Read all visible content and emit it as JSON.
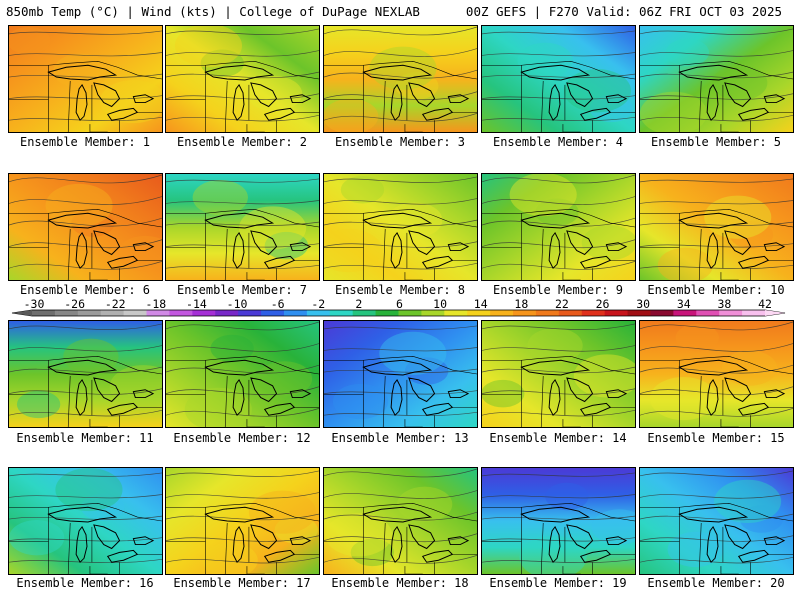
{
  "header": {
    "left": "850mb Temp (°C) | Wind (kts) | College of DuPage NEXLAB",
    "right": "00Z GEFS | F270 Valid: 06Z FRI OCT 03 2025"
  },
  "color_scale": {
    "tick_labels": [
      "-30",
      "-26",
      "-22",
      "-18",
      "-14",
      "-10",
      "-6",
      "-2",
      "2",
      "6",
      "10",
      "14",
      "18",
      "22",
      "26",
      "30",
      "34",
      "38",
      "42"
    ],
    "colors": [
      "#6e6e6e",
      "#878787",
      "#9b9b9b",
      "#b0b0b0",
      "#c8c8c8",
      "#d18ae6",
      "#c357e0",
      "#a52fd6",
      "#7828c8",
      "#4b3ad6",
      "#2f5fe6",
      "#2f8ff0",
      "#38c0ee",
      "#2ed6c4",
      "#26c47e",
      "#28b23a",
      "#6cc42a",
      "#a8d62a",
      "#e6e62a",
      "#f5d21c",
      "#f7b21c",
      "#f6951c",
      "#f07a1c",
      "#e85a1c",
      "#e0301c",
      "#c8141c",
      "#a00e14",
      "#8a0a30",
      "#c8147a",
      "#e050b4",
      "#f090d8",
      "#f8c0ee"
    ]
  },
  "members": [
    {
      "label": "Ensemble Member: 1",
      "colors": [
        "#f07a1c",
        "#f6951c",
        "#f7b21c",
        "#f5d21c",
        "#f6951c"
      ]
    },
    {
      "label": "Ensemble Member: 2",
      "colors": [
        "#a8d62a",
        "#6cc42a",
        "#e6e62a",
        "#f5d21c",
        "#f6951c"
      ]
    },
    {
      "label": "Ensemble Member: 3",
      "colors": [
        "#e6e62a",
        "#f5d21c",
        "#f7b21c",
        "#a8d62a",
        "#f6951c"
      ]
    },
    {
      "label": "Ensemble Member: 4",
      "colors": [
        "#2f5fe6",
        "#38c0ee",
        "#2ed6c4",
        "#26c47e",
        "#6cc42a"
      ]
    },
    {
      "label": "Ensemble Member: 5",
      "colors": [
        "#38c0ee",
        "#2ed6c4",
        "#6cc42a",
        "#a8d62a",
        "#f5d21c"
      ]
    },
    {
      "label": "Ensemble Member: 6",
      "colors": [
        "#e85a1c",
        "#f07a1c",
        "#f6951c",
        "#f7b21c",
        "#a8d62a"
      ]
    },
    {
      "label": "Ensemble Member: 7",
      "colors": [
        "#2ed6c4",
        "#26c47e",
        "#a8d62a",
        "#e6e62a",
        "#f7b21c"
      ]
    },
    {
      "label": "Ensemble Member: 8",
      "colors": [
        "#6cc42a",
        "#a8d62a",
        "#e6e62a",
        "#f5d21c",
        "#e6e62a"
      ]
    },
    {
      "label": "Ensemble Member: 9",
      "colors": [
        "#26c47e",
        "#6cc42a",
        "#a8d62a",
        "#e6e62a",
        "#f5d21c"
      ]
    },
    {
      "label": "Ensemble Member: 10",
      "colors": [
        "#f07a1c",
        "#f6951c",
        "#f7b21c",
        "#e6e62a",
        "#6cc42a"
      ]
    },
    {
      "label": "Ensemble Member: 11",
      "colors": [
        "#2f5fe6",
        "#26c47e",
        "#6cc42a",
        "#a8d62a",
        "#f5d21c"
      ]
    },
    {
      "label": "Ensemble Member: 12",
      "colors": [
        "#26c47e",
        "#28b23a",
        "#6cc42a",
        "#a8d62a",
        "#e6e62a"
      ]
    },
    {
      "label": "Ensemble Member: 13",
      "colors": [
        "#4b3ad6",
        "#2f5fe6",
        "#2f8ff0",
        "#38c0ee",
        "#2ed6c4"
      ]
    },
    {
      "label": "Ensemble Member: 14",
      "colors": [
        "#28b23a",
        "#6cc42a",
        "#a8d62a",
        "#e6e62a",
        "#f5d21c"
      ]
    },
    {
      "label": "Ensemble Member: 15",
      "colors": [
        "#f07a1c",
        "#f6951c",
        "#f7b21c",
        "#e6e62a",
        "#a8d62a"
      ]
    },
    {
      "label": "Ensemble Member: 16",
      "colors": [
        "#2f8ff0",
        "#38c0ee",
        "#2ed6c4",
        "#26c47e",
        "#a8d62a"
      ]
    },
    {
      "label": "Ensemble Member: 17",
      "colors": [
        "#a8d62a",
        "#e6e62a",
        "#f5d21c",
        "#f7b21c",
        "#6cc42a"
      ]
    },
    {
      "label": "Ensemble Member: 18",
      "colors": [
        "#26c47e",
        "#6cc42a",
        "#a8d62a",
        "#e6e62a",
        "#f7b21c"
      ]
    },
    {
      "label": "Ensemble Member: 19",
      "colors": [
        "#4b3ad6",
        "#2f5fe6",
        "#38c0ee",
        "#2ed6c4",
        "#6cc42a"
      ]
    },
    {
      "label": "Ensemble Member: 20",
      "colors": [
        "#4b3ad6",
        "#2f8ff0",
        "#38c0ee",
        "#2ed6c4",
        "#26c47e"
      ]
    }
  ]
}
